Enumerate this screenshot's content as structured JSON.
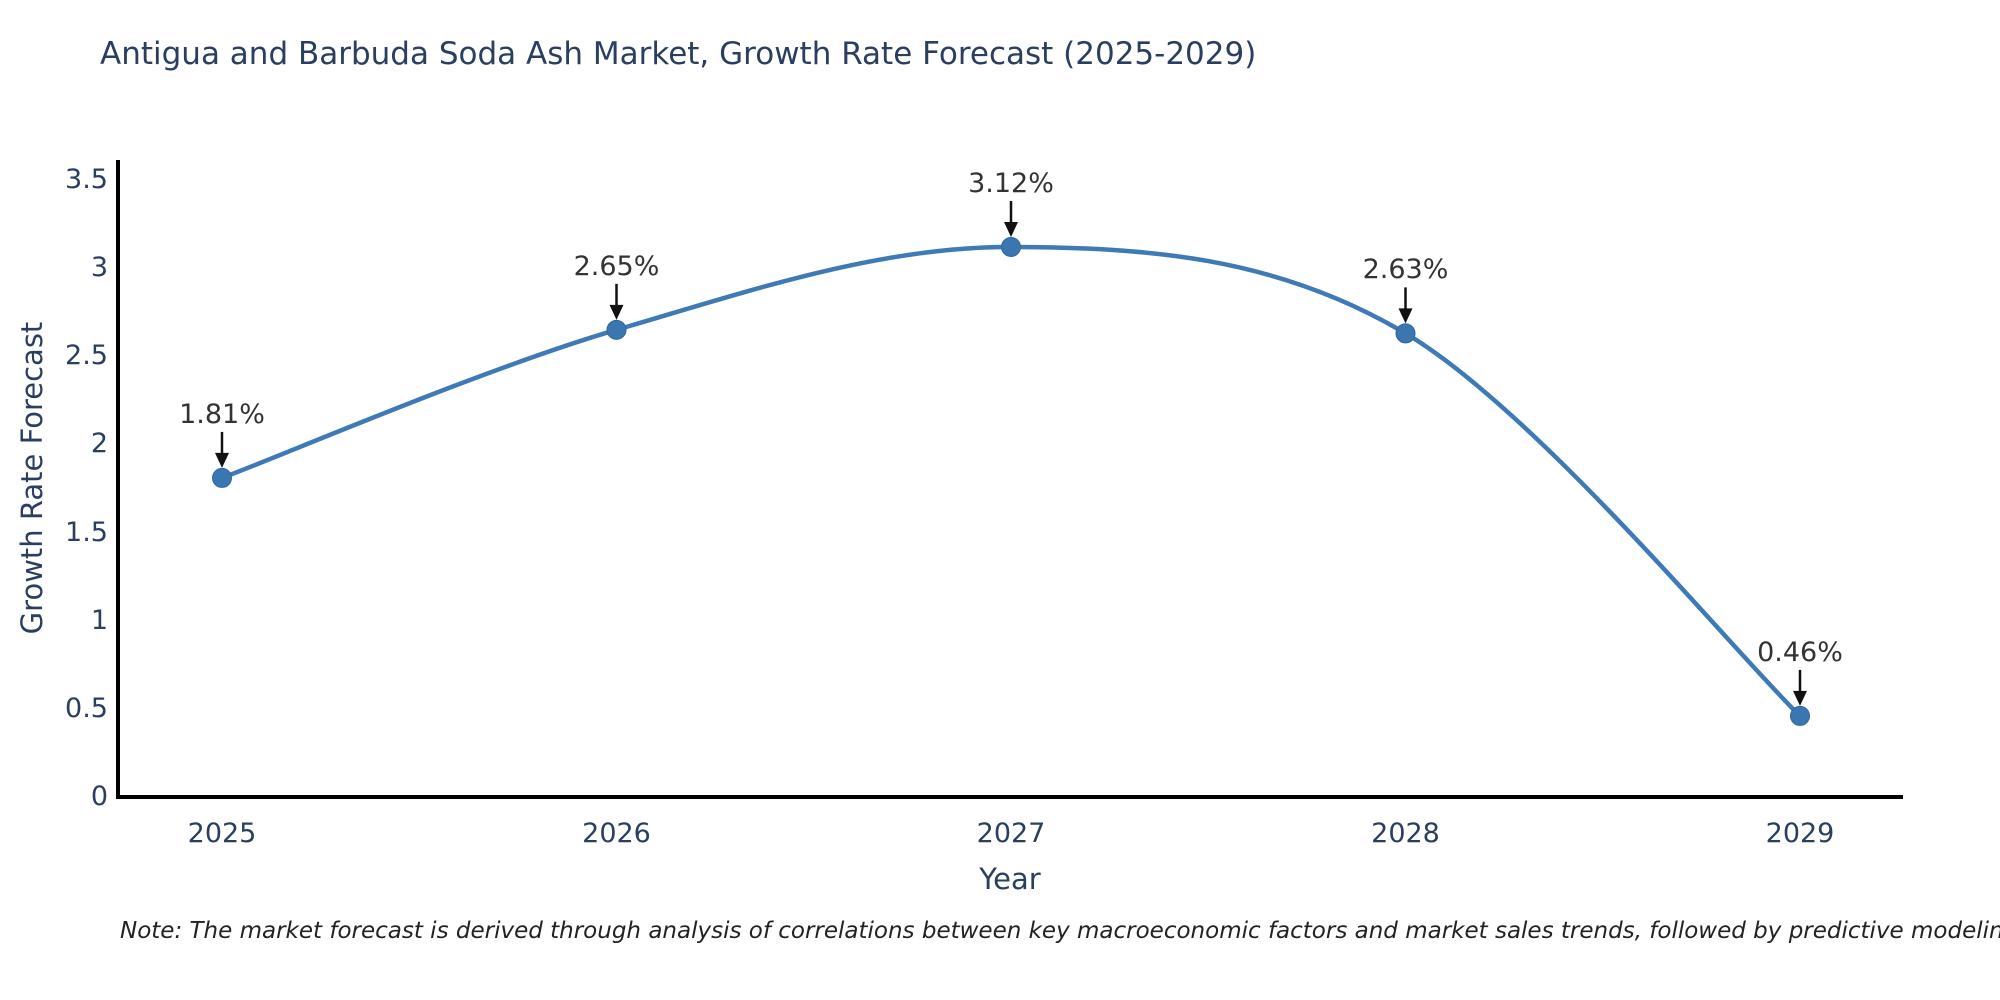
{
  "chart": {
    "note": "Note: The market forecast is derived through analysis of correlations between key macroeconomic factors and market sales trends, followed by predictive modeling to project future sales",
    "colors": {
      "line": "#3e7ab5",
      "marker_fill": "#3a76b0",
      "marker_edge": "#31659c",
      "axis_line": "#000000",
      "arrow": "#111111",
      "title_text": "#2a3f5f",
      "tick_text": "#2a3f5f",
      "annotation_text": "#333333"
    }
  },
  "chart_data": {
    "type": "line",
    "title": "Antigua and Barbuda Soda Ash Market, Growth Rate Forecast (2025-2029)",
    "x": [
      2025,
      2026,
      2027,
      2028,
      2029
    ],
    "values": [
      1.81,
      2.65,
      3.12,
      2.63,
      0.46
    ],
    "point_labels": [
      "1.81%",
      "2.65%",
      "3.12%",
      "2.63%",
      "0.46%"
    ],
    "xlabel": "Year",
    "ylabel": "Growth Rate Forecast",
    "ylim": [
      0,
      3.5
    ],
    "yticks": [
      0,
      0.5,
      1,
      1.5,
      2,
      2.5,
      3,
      3.5
    ],
    "line_shape": "spline",
    "grid": false,
    "legend": "none",
    "markers": true,
    "annotations_arrows": true
  }
}
